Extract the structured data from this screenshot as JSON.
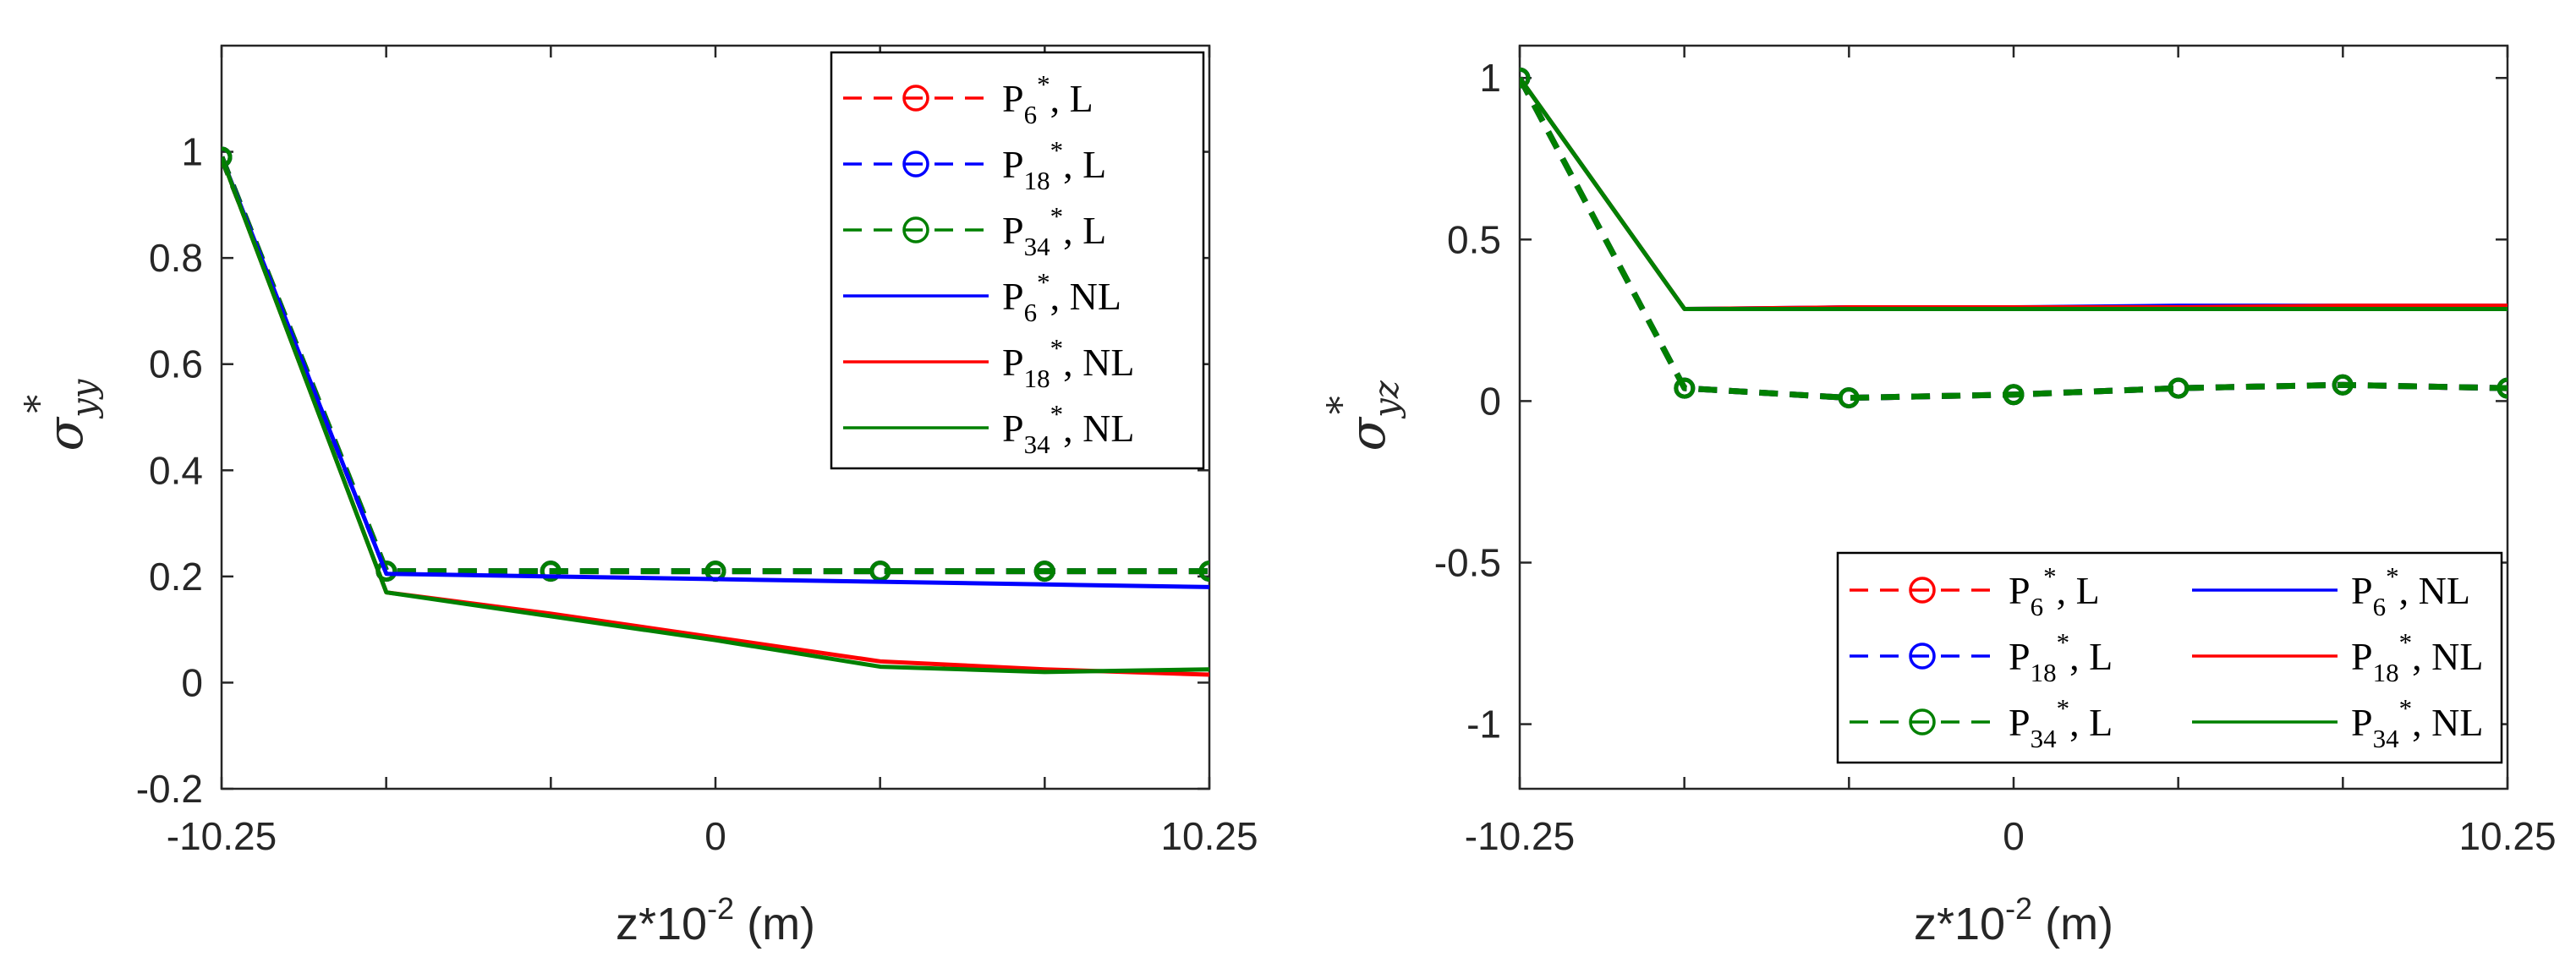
{
  "colors": {
    "red": "#ff0000",
    "blue": "#0000ff",
    "green": "#008000",
    "axis": "#262626"
  },
  "chart_data": [
    {
      "type": "line",
      "title": "",
      "xlabel": "z*10",
      "xlabel_exp": "-2",
      "xlabel_unit": " (m)",
      "ylabel": "σ",
      "ylabel_sub": "yy",
      "ylabel_sup": "*",
      "xlim": [
        -10.25,
        10.25
      ],
      "ylim": [
        -0.2,
        1.2
      ],
      "x_ticks": [
        -10.25,
        0,
        10.25
      ],
      "x_tick_labels": [
        "-10.25",
        "0",
        "10.25"
      ],
      "y_ticks": [
        -0.2,
        0,
        0.2,
        0.4,
        0.6,
        0.8,
        1
      ],
      "y_tick_labels": [
        "-0.2",
        "0",
        "0.2",
        "0.4",
        "0.6",
        "0.8",
        "1"
      ],
      "legend_position": "top-right",
      "legend_columns": 1,
      "series": [
        {
          "name": "P6*, L",
          "label_main": "P",
          "label_sub": "6",
          "label_tail": ", L",
          "style": "dashed-circle",
          "color": "red",
          "x": [
            -10.25,
            -6.83,
            -3.42,
            0,
            3.42,
            6.83,
            10.25
          ],
          "y": [
            0.99,
            0.21,
            0.21,
            0.21,
            0.21,
            0.21,
            0.21
          ]
        },
        {
          "name": "P18*, L",
          "label_main": "P",
          "label_sub": "18",
          "label_tail": ", L",
          "style": "dashed-circle",
          "color": "blue",
          "x": [
            -10.25,
            -6.83,
            -3.42,
            0,
            3.42,
            6.83,
            10.25
          ],
          "y": [
            0.99,
            0.21,
            0.21,
            0.21,
            0.21,
            0.21,
            0.21
          ]
        },
        {
          "name": "P34*, L",
          "label_main": "P",
          "label_sub": "34",
          "label_tail": ", L",
          "style": "dashed-circle",
          "color": "green",
          "x": [
            -10.25,
            -6.83,
            -3.42,
            0,
            3.42,
            6.83,
            10.25
          ],
          "y": [
            0.99,
            0.21,
            0.21,
            0.21,
            0.21,
            0.21,
            0.21
          ]
        },
        {
          "name": "P6*, NL",
          "label_main": "P",
          "label_sub": "6",
          "label_tail": ", NL",
          "style": "solid",
          "color": "blue",
          "x": [
            -10.25,
            -6.83,
            -3.42,
            0,
            3.42,
            6.83,
            10.25
          ],
          "y": [
            0.99,
            0.205,
            0.2,
            0.195,
            0.19,
            0.185,
            0.18
          ]
        },
        {
          "name": "P18*, NL",
          "label_main": "P",
          "label_sub": "18",
          "label_tail": ", NL",
          "style": "solid",
          "color": "red",
          "x": [
            -10.25,
            -6.83,
            -3.42,
            0,
            3.42,
            6.83,
            10.25
          ],
          "y": [
            0.99,
            0.17,
            0.13,
            0.085,
            0.04,
            0.025,
            0.015
          ]
        },
        {
          "name": "P34*, NL",
          "label_main": "P",
          "label_sub": "34",
          "label_tail": ", NL",
          "style": "solid",
          "color": "green",
          "x": [
            -10.25,
            -6.83,
            -3.42,
            0,
            3.42,
            6.83,
            10.25
          ],
          "y": [
            0.99,
            0.17,
            0.125,
            0.08,
            0.03,
            0.02,
            0.025
          ]
        }
      ]
    },
    {
      "type": "line",
      "title": "",
      "xlabel": "z*10",
      "xlabel_exp": "-2",
      "xlabel_unit": " (m)",
      "ylabel": "σ",
      "ylabel_sub": "yz",
      "ylabel_sup": "*",
      "xlim": [
        -10.25,
        10.25
      ],
      "ylim": [
        -1.2,
        1.1
      ],
      "x_ticks": [
        -10.25,
        0,
        10.25
      ],
      "x_tick_labels": [
        "-10.25",
        "0",
        "10.25"
      ],
      "y_ticks": [
        -1,
        -0.5,
        0,
        0.5,
        1
      ],
      "y_tick_labels": [
        "-1",
        "-0.5",
        "0",
        "0.5",
        "1"
      ],
      "legend_position": "bottom-right",
      "legend_columns": 2,
      "series": [
        {
          "name": "P6*, L",
          "label_main": "P",
          "label_sub": "6",
          "label_tail": ", L",
          "style": "dashed-circle",
          "color": "red",
          "x": [
            -10.25,
            -6.83,
            -3.42,
            0,
            3.42,
            6.83,
            10.25
          ],
          "y": [
            1.0,
            0.04,
            0.01,
            0.02,
            0.04,
            0.05,
            0.04
          ]
        },
        {
          "name": "P18*, L",
          "label_main": "P",
          "label_sub": "18",
          "label_tail": ", L",
          "style": "dashed-circle",
          "color": "blue",
          "x": [
            -10.25,
            -6.83,
            -3.42,
            0,
            3.42,
            6.83,
            10.25
          ],
          "y": [
            1.0,
            0.04,
            0.01,
            0.02,
            0.04,
            0.05,
            0.04
          ]
        },
        {
          "name": "P34*, L",
          "label_main": "P",
          "label_sub": "34",
          "label_tail": ", L",
          "style": "dashed-circle",
          "color": "green",
          "x": [
            -10.25,
            -6.83,
            -3.42,
            0,
            3.42,
            6.83,
            10.25
          ],
          "y": [
            1.0,
            0.04,
            0.01,
            0.02,
            0.04,
            0.05,
            0.04
          ]
        },
        {
          "name": "P6*, NL",
          "label_main": "P",
          "label_sub": "6",
          "label_tail": ", NL",
          "style": "solid",
          "color": "blue",
          "x": [
            -10.25,
            -6.83,
            -3.42,
            0,
            3.42,
            6.83,
            10.25
          ],
          "y": [
            1.0,
            0.285,
            0.29,
            0.29,
            0.295,
            0.295,
            0.295
          ]
        },
        {
          "name": "P18*, NL",
          "label_main": "P",
          "label_sub": "18",
          "label_tail": ", NL",
          "style": "solid",
          "color": "red",
          "x": [
            -10.25,
            -6.83,
            -3.42,
            0,
            3.42,
            6.83,
            10.25
          ],
          "y": [
            1.0,
            0.285,
            0.29,
            0.29,
            0.29,
            0.295,
            0.295
          ]
        },
        {
          "name": "P34*, NL",
          "label_main": "P",
          "label_sub": "34",
          "label_tail": ", NL",
          "style": "solid",
          "color": "green",
          "x": [
            -10.25,
            -6.83,
            -3.42,
            0,
            3.42,
            6.83,
            10.25
          ],
          "y": [
            1.0,
            0.285,
            0.285,
            0.285,
            0.285,
            0.285,
            0.285
          ]
        }
      ]
    }
  ]
}
